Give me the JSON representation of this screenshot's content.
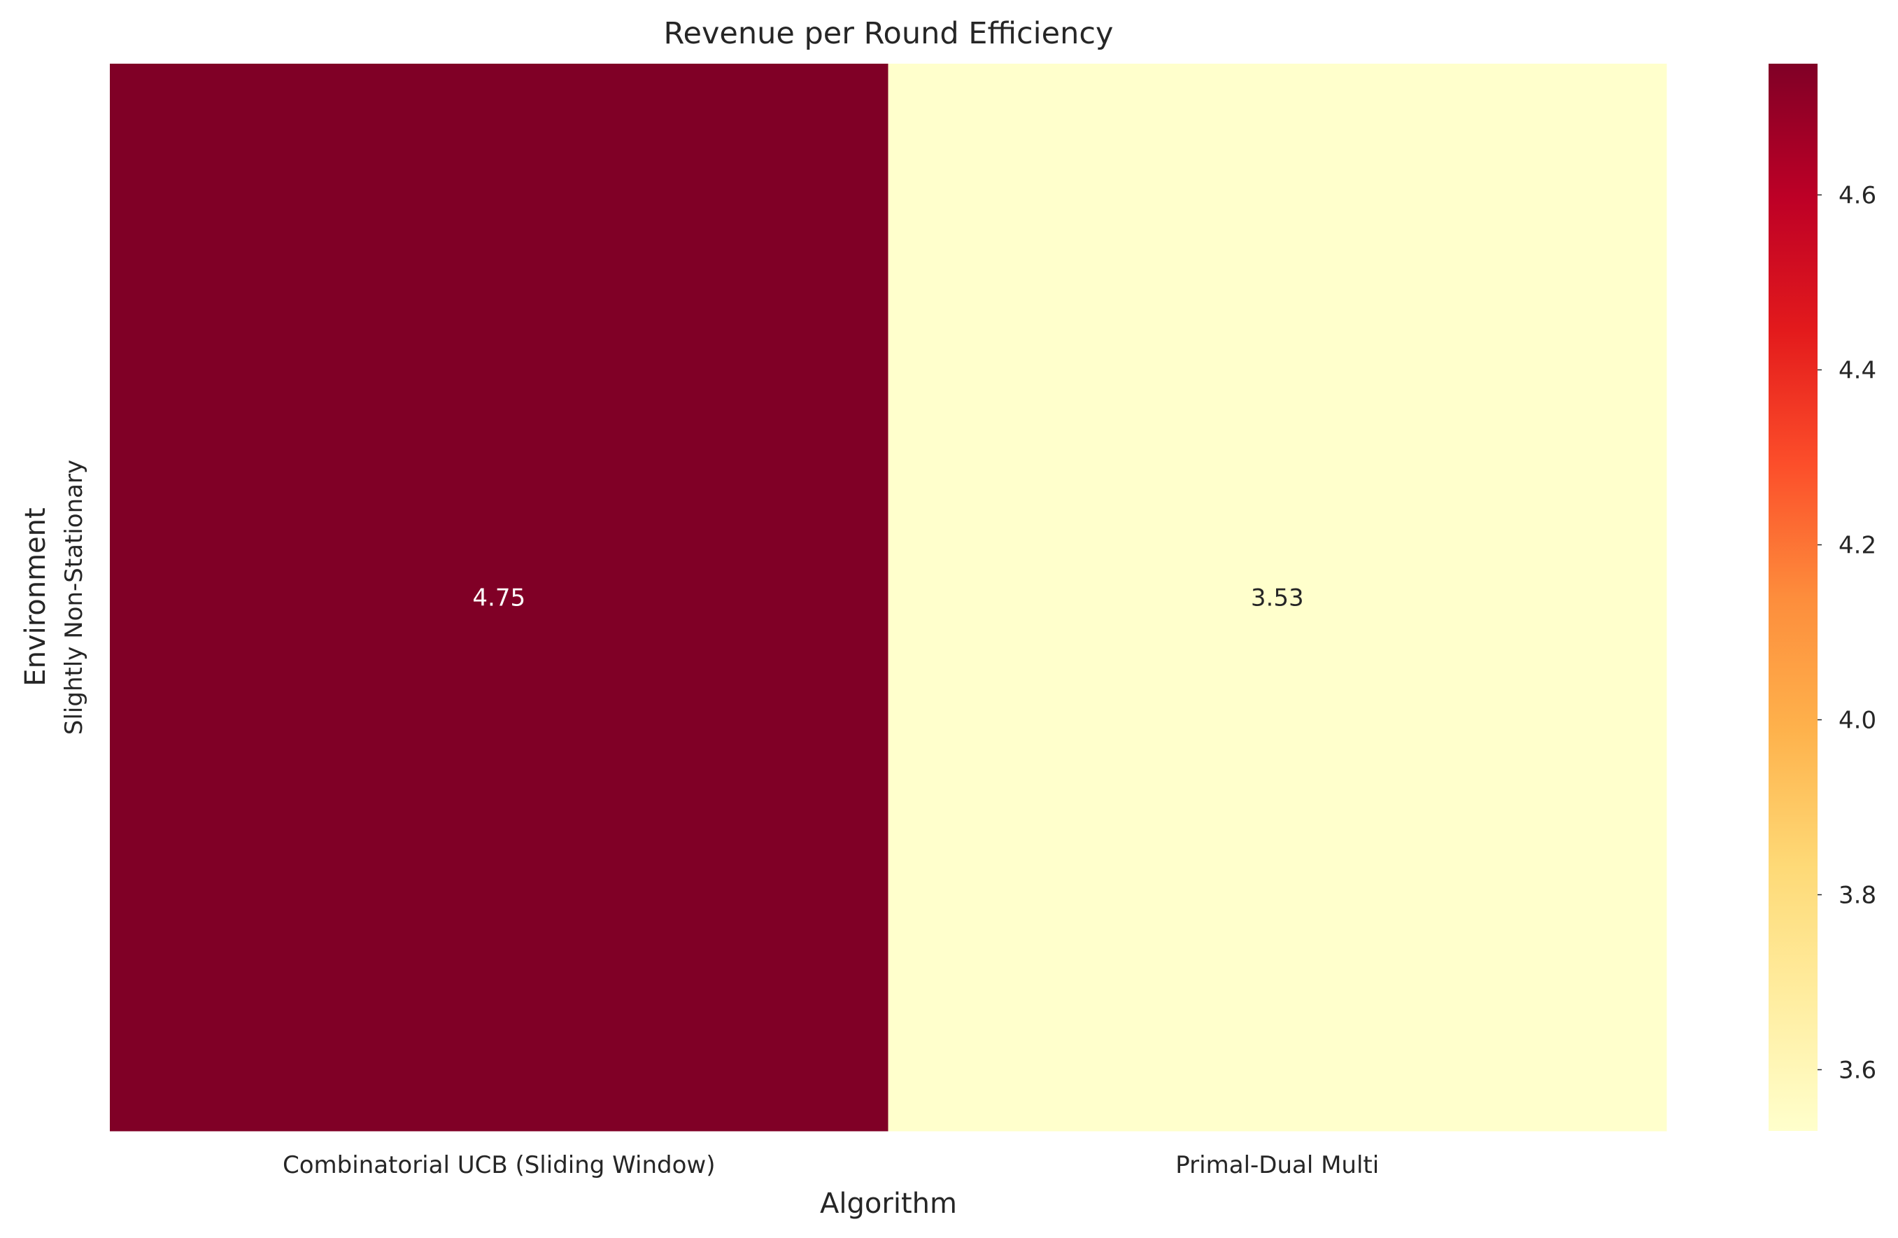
{
  "chart_data": {
    "type": "heatmap",
    "title": "Revenue per Round Efficiency",
    "xlabel": "Algorithm",
    "ylabel": "Environment",
    "x_categories": [
      "Combinatorial UCB (Sliding Window)",
      "Primal-Dual Multi"
    ],
    "y_categories": [
      "Slightly Non-Stationary"
    ],
    "values": [
      [
        4.75,
        3.53
      ]
    ],
    "annotations": [
      [
        "4.75",
        "3.53"
      ]
    ],
    "colormap": "YlOrRd",
    "colorbar": {
      "min": 3.53,
      "max": 4.75,
      "ticks": [
        3.6,
        3.8,
        4.0,
        4.2,
        4.4,
        4.6
      ],
      "tick_labels": [
        "3.6",
        "3.8",
        "4.0",
        "4.2",
        "4.4",
        "4.6"
      ]
    },
    "grid": false,
    "annotation_colors": {
      "dark_cell": "#ffffff",
      "light_cell": "#262626"
    }
  }
}
